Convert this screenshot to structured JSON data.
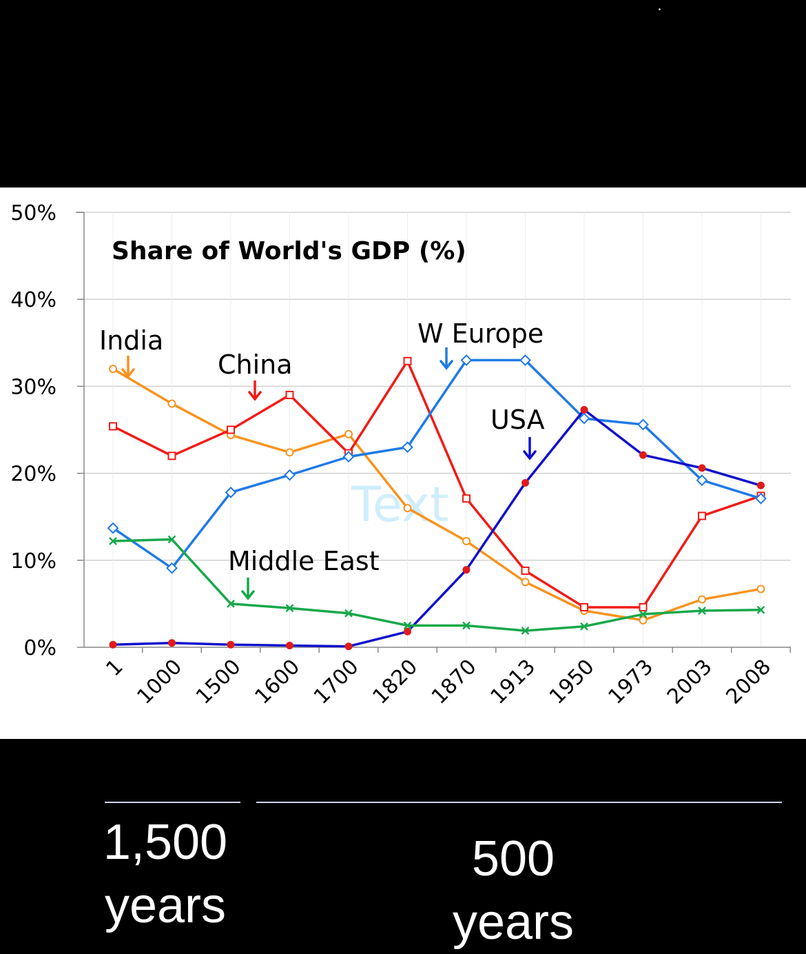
{
  "chart_data": {
    "type": "line",
    "title": "Share of World's GDP (%)",
    "categories": [
      "1",
      "1000",
      "1500",
      "1600",
      "1700",
      "1820",
      "1870",
      "1913",
      "1950",
      "1973",
      "2003",
      "2008"
    ],
    "ylim": [
      0,
      50
    ],
    "yticks": [
      "0%",
      "10%",
      "20%",
      "30%",
      "40%",
      "50%"
    ],
    "grid": true,
    "legend": "none",
    "series": [
      {
        "name": "India",
        "color": "#f7931e",
        "marker": "circle",
        "values": [
          32.0,
          28.0,
          24.4,
          22.4,
          24.5,
          16.0,
          12.2,
          7.5,
          4.2,
          3.1,
          5.5,
          6.7
        ]
      },
      {
        "name": "China",
        "color": "#f21b16",
        "marker": "square",
        "values": [
          25.4,
          22.0,
          25.0,
          29.0,
          22.3,
          32.9,
          17.1,
          8.8,
          4.6,
          4.6,
          15.1,
          17.4
        ]
      },
      {
        "name": "W Europe",
        "color": "#1f7ae6",
        "marker": "diamond",
        "values": [
          13.7,
          9.1,
          17.8,
          19.8,
          21.9,
          23.0,
          33.0,
          33.0,
          26.3,
          25.6,
          19.2,
          17.1
        ]
      },
      {
        "name": "USA",
        "color": "#1111cc",
        "marker": "dot",
        "values": [
          0.3,
          0.5,
          0.3,
          0.2,
          0.1,
          1.8,
          8.9,
          18.9,
          27.3,
          22.1,
          20.6,
          18.6
        ]
      },
      {
        "name": "Middle East",
        "color": "#17a84a",
        "marker": "cross",
        "values": [
          12.2,
          12.4,
          5.0,
          4.5,
          3.9,
          2.5,
          2.5,
          1.9,
          2.4,
          3.8,
          4.2,
          4.3
        ]
      }
    ],
    "annotations": [
      {
        "series": "India",
        "text": "India",
        "color": "#f7931e"
      },
      {
        "series": "China",
        "text": "China",
        "color": "#f21b16"
      },
      {
        "series": "W Europe",
        "text": "W Europe",
        "color": "#1f7ae6"
      },
      {
        "series": "USA",
        "text": "USA",
        "color": "#1111cc"
      },
      {
        "series": "Middle East",
        "text": "Middle East",
        "color": "#17a84a"
      }
    ],
    "watermark": "Text"
  },
  "periods": [
    {
      "label": "1,500\nyears"
    },
    {
      "label": "500\nyears"
    }
  ]
}
